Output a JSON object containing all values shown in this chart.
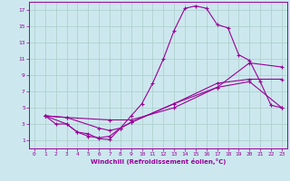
{
  "xlabel": "Windchill (Refroidissement éolien,°C)",
  "background_color": "#cce8ee",
  "grid_color": "#aaccc8",
  "line_color": "#990099",
  "xlim": [
    -0.5,
    23.5
  ],
  "ylim": [
    0,
    18
  ],
  "xticks": [
    0,
    1,
    2,
    3,
    4,
    5,
    6,
    7,
    8,
    9,
    10,
    11,
    12,
    13,
    14,
    15,
    16,
    17,
    18,
    19,
    20,
    21,
    22,
    23
  ],
  "yticks": [
    1,
    3,
    5,
    7,
    9,
    11,
    13,
    15,
    17
  ],
  "lines": [
    {
      "x": [
        1,
        2,
        3,
        4,
        5,
        6,
        7,
        8,
        9,
        10,
        11,
        12,
        13,
        14,
        15,
        16,
        17,
        18,
        19,
        20,
        21,
        22,
        23
      ],
      "y": [
        4,
        3,
        3,
        2,
        1.8,
        1.2,
        1.1,
        2.5,
        4,
        5.5,
        8.0,
        11.0,
        14.5,
        17.2,
        17.5,
        17.2,
        15.2,
        14.8,
        11.5,
        10.8,
        8.2,
        5.3,
        5.0
      ]
    },
    {
      "x": [
        1,
        3,
        7,
        9,
        13,
        17,
        20,
        23
      ],
      "y": [
        4,
        3.8,
        3.5,
        3.5,
        5.0,
        7.5,
        10.5,
        10.0
      ]
    },
    {
      "x": [
        1,
        3,
        6,
        7,
        8,
        9,
        13,
        17,
        20,
        23
      ],
      "y": [
        4,
        3.8,
        2.5,
        2.2,
        2.5,
        3.2,
        5.5,
        8.0,
        8.5,
        8.5
      ]
    },
    {
      "x": [
        1,
        3,
        4,
        5,
        6,
        7,
        8,
        9,
        13,
        17,
        20,
        23
      ],
      "y": [
        4,
        3.0,
        2.0,
        1.5,
        1.3,
        1.5,
        2.5,
        3.2,
        5.5,
        7.5,
        8.2,
        5.0
      ]
    }
  ]
}
